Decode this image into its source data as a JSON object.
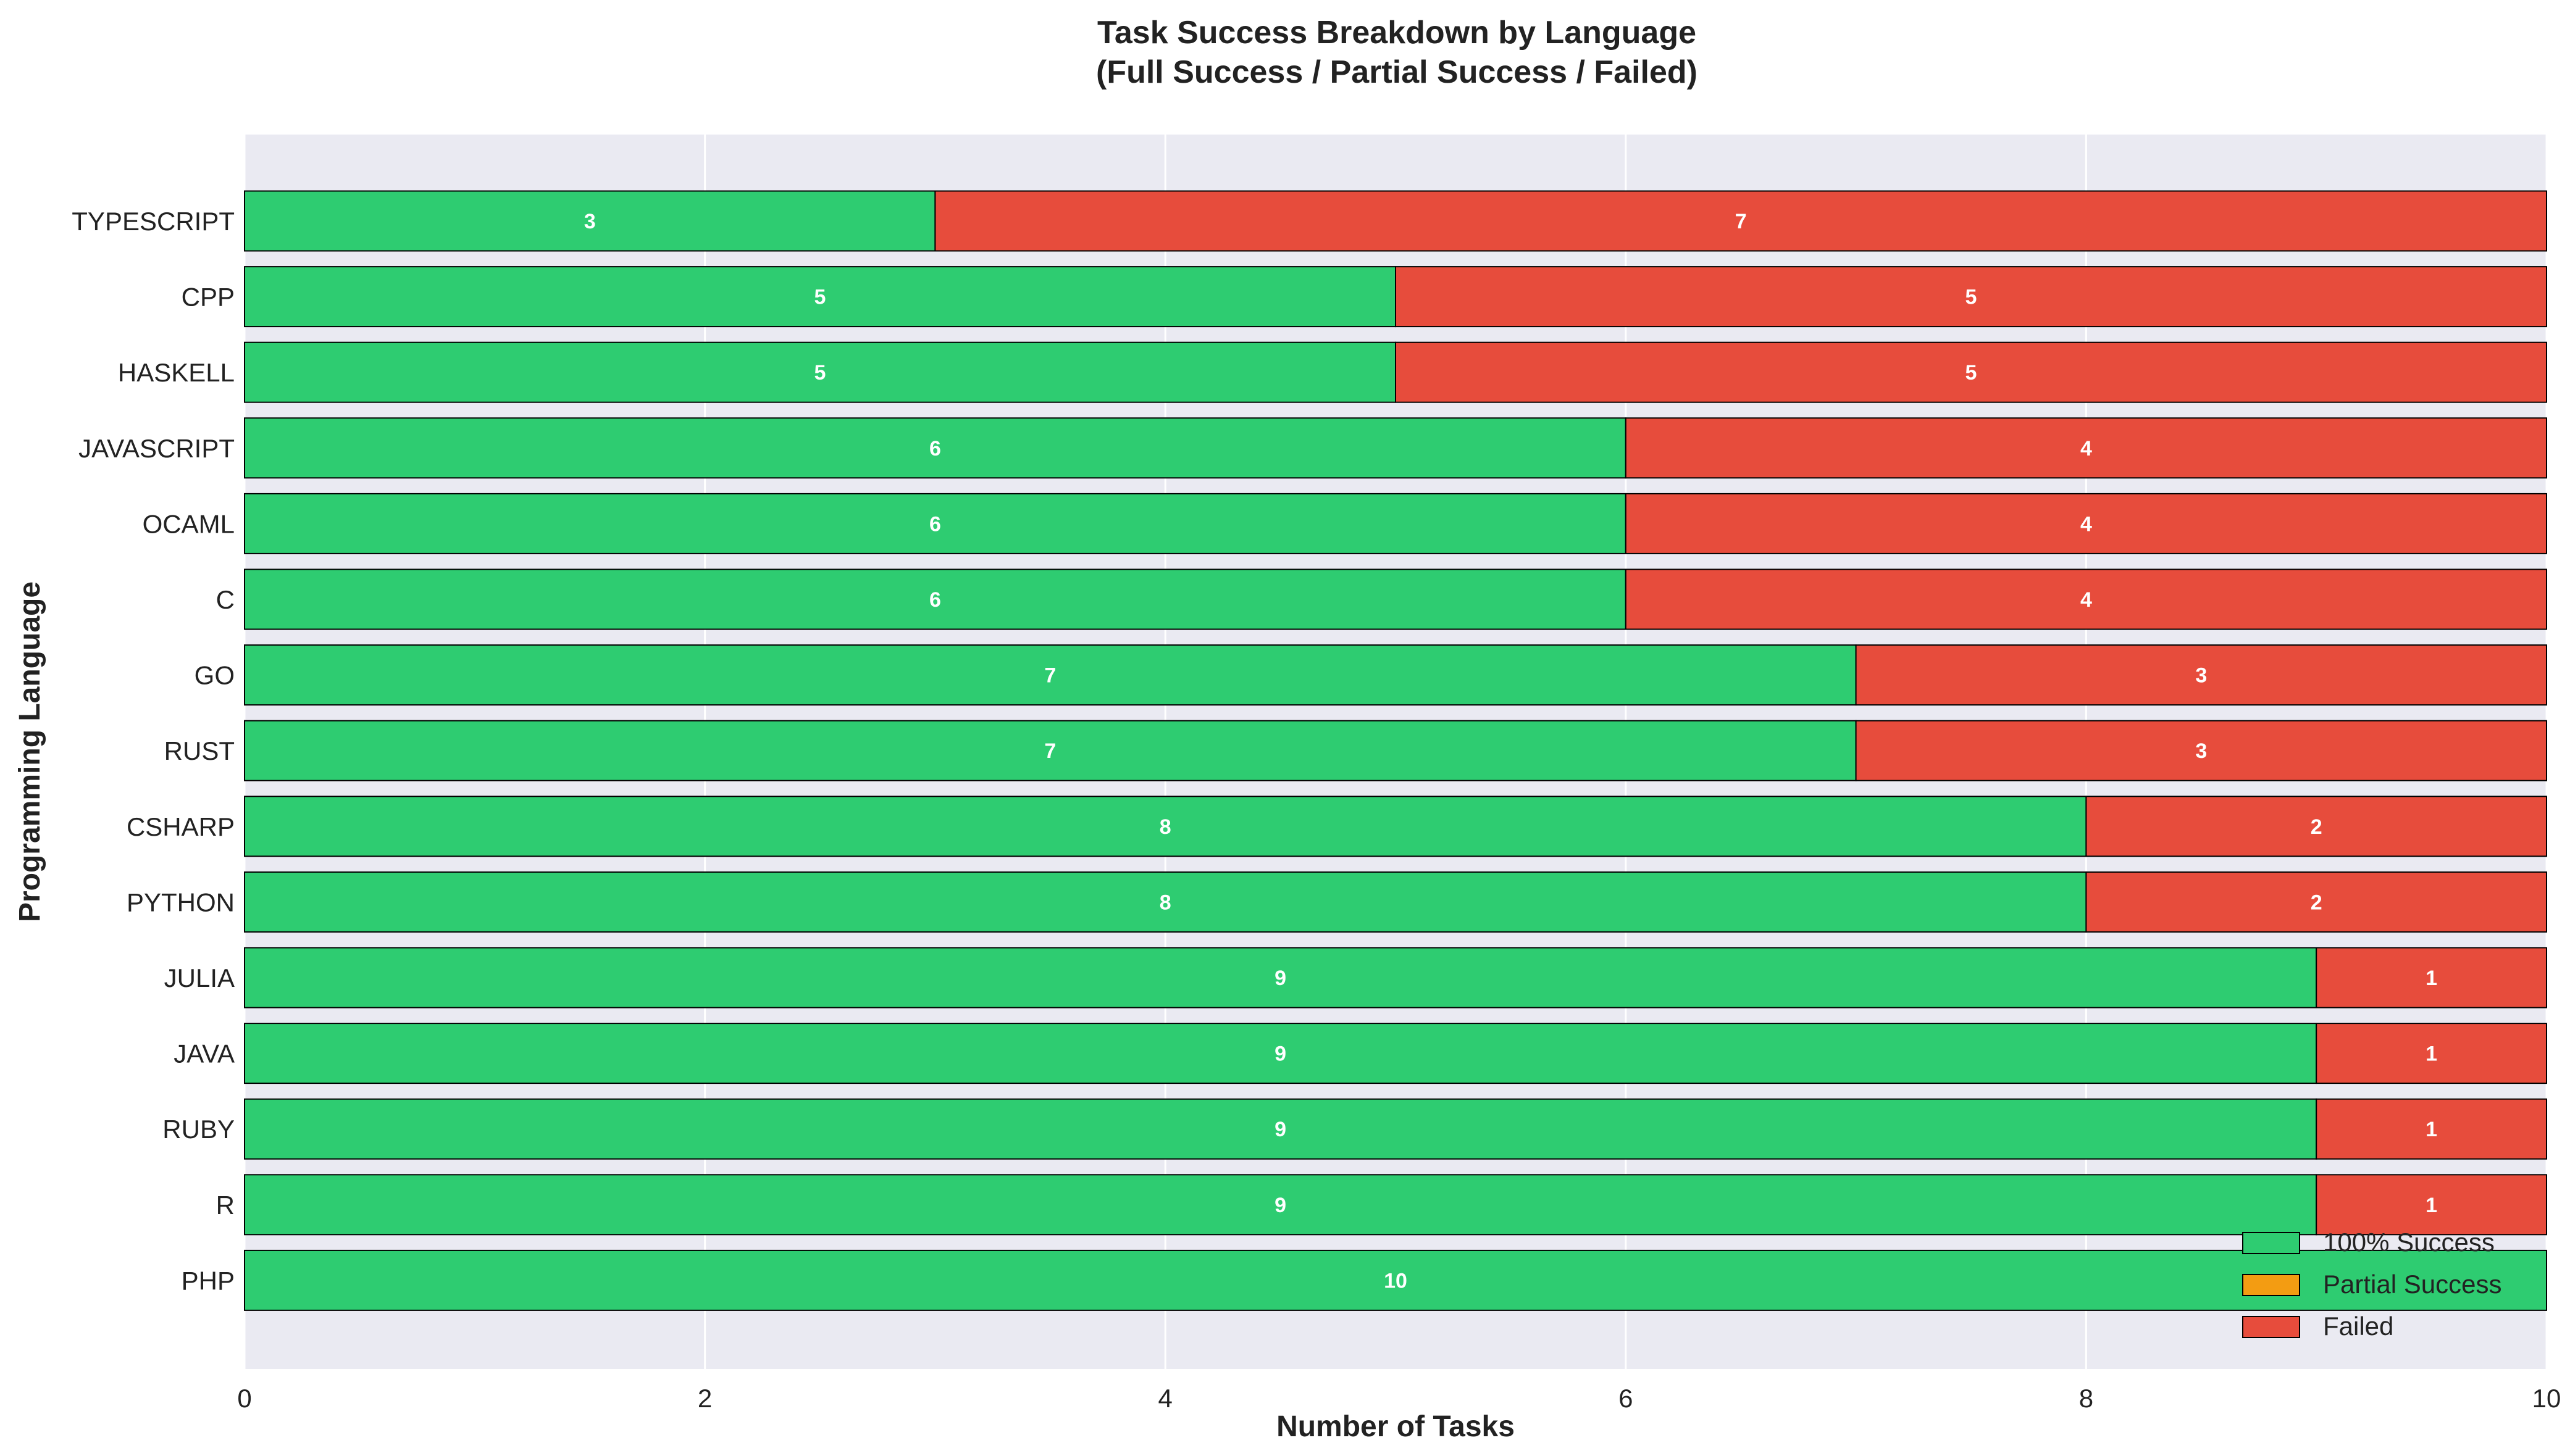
{
  "chart_data": {
    "type": "bar",
    "orientation": "horizontal",
    "stacked": true,
    "title": "Task Success Breakdown by Language\n(Full Success / Partial Success / Failed)",
    "xlabel": "Number of Tasks",
    "ylabel": "Programming Language",
    "xlim": [
      0,
      10
    ],
    "xticks": [
      0,
      2,
      4,
      6,
      8,
      10
    ],
    "grid": true,
    "legend_position": "bottom-right",
    "categories": [
      "TYPESCRIPT",
      "CPP",
      "HASKELL",
      "JAVASCRIPT",
      "OCAML",
      "C",
      "GO",
      "RUST",
      "CSHARP",
      "PYTHON",
      "JULIA",
      "JAVA",
      "RUBY",
      "R",
      "PHP"
    ],
    "series": [
      {
        "name": "100% Success",
        "color": "#2ecc71",
        "values": [
          3,
          5,
          5,
          6,
          6,
          6,
          7,
          7,
          8,
          8,
          9,
          9,
          9,
          9,
          10
        ]
      },
      {
        "name": "Partial Success",
        "color": "#f39c12",
        "values": [
          0,
          0,
          0,
          0,
          0,
          0,
          0,
          0,
          0,
          0,
          0,
          0,
          0,
          0,
          0
        ]
      },
      {
        "name": "Failed",
        "color": "#e74c3c",
        "values": [
          7,
          5,
          5,
          4,
          4,
          4,
          3,
          3,
          2,
          2,
          1,
          1,
          1,
          1,
          0
        ]
      }
    ],
    "plot_background": "#eaeaf2"
  }
}
